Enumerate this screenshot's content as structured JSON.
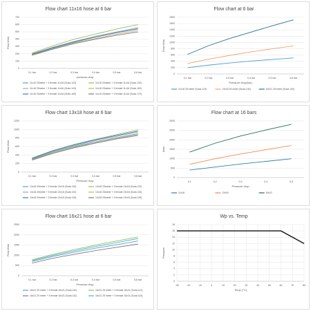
{
  "chart_data": [
    {
      "type": "line",
      "title": "Flow chart 11x16 hose at 6 bar",
      "y_label": "Flow l/min",
      "x_label": "pressure drop",
      "categories": [
        "0,1 bar",
        "0,2 bar",
        "0,3 bar",
        "0,4 bar",
        "0,5 bar",
        "0,6 bar"
      ],
      "ylim": [
        0,
        700
      ],
      "yticks": [
        0,
        100,
        200,
        300,
        400,
        500,
        600,
        700
      ],
      "grid": true,
      "series": [
        {
          "name": "11x16 25meter + 3 female 11x16 (Suda 123)",
          "color": "#5b9bd5",
          "values": [
            190,
            280,
            360,
            430,
            490,
            540
          ]
        },
        {
          "name": "11x16 25meter + 3 female 11x16 (Suda 130)",
          "color": "#8fbf5a",
          "values": [
            210,
            310,
            400,
            470,
            540,
            600
          ]
        },
        {
          "name": "11x16 25meter + 3 female 11x16 (Suda 140)",
          "color": "#a5a5a5",
          "values": [
            200,
            290,
            370,
            440,
            500,
            560
          ]
        },
        {
          "name": "11x16 25meter + 3 female 11x16 (Suda 150)",
          "color": "#c9b458",
          "values": [
            185,
            270,
            350,
            410,
            470,
            520
          ]
        },
        {
          "name": "11x16 25meter + 3 female 11x16 (Suda 160)",
          "color": "#4472c4",
          "values": [
            195,
            285,
            365,
            430,
            490,
            545
          ]
        },
        {
          "name": "11x16 25meter + 3 female 11x16 (Suda 170)",
          "color": "#7a7a7a",
          "values": [
            180,
            265,
            340,
            400,
            455,
            500
          ]
        }
      ]
    },
    {
      "type": "line",
      "title": "Flow chart at 6 bar",
      "y_label": "Flow l/min",
      "x_label": "Pressure drop(bar)",
      "categories": [
        "0,1 bar",
        "0,2 bar",
        "0,3 bar",
        "0,4 bar",
        "0,5 bar",
        "0,6 bar"
      ],
      "ylim": [
        0,
        1800
      ],
      "yticks": [
        0,
        200,
        400,
        600,
        800,
        1000,
        1200,
        1400,
        1600,
        1800
      ],
      "grid": true,
      "series": [
        {
          "name": "11x16 25 meter (Suda 123)",
          "color": "#4a9ed0",
          "values": [
            200,
            280,
            350,
            410,
            460,
            510
          ]
        },
        {
          "name": "13x18 25 meter (Suda 130)",
          "color": "#f0a46a",
          "values": [
            330,
            470,
            590,
            700,
            800,
            890
          ]
        },
        {
          "name": "16x21 25 meter (Suda 140)",
          "color": "#2e6e8e",
          "values": [
            620,
            900,
            1130,
            1330,
            1530,
            1720
          ]
        }
      ]
    },
    {
      "type": "line",
      "title": "Flow chart 13x18 hose at 6 bar",
      "y_label": "Flow l/min",
      "x_label": "Pressure drop",
      "categories": [
        "0,1 bar",
        "0,2 bar",
        "0,3 bar",
        "0,4 bar",
        "0,5 bar",
        "0,6 bar"
      ],
      "ylim": [
        0,
        1200
      ],
      "yticks": [
        0,
        200,
        400,
        600,
        800,
        1000,
        1200
      ],
      "grid": true,
      "series": [
        {
          "name": "13x18 25meter + 3 female 13x18 (Suda 130)",
          "color": "#5b9bd5",
          "values": [
            300,
            470,
            600,
            710,
            810,
            900
          ]
        },
        {
          "name": "13x18 25meter + 3 female 13x18 (Suda 131)",
          "color": "#8fbf5a",
          "values": [
            330,
            510,
            650,
            770,
            880,
            990
          ]
        },
        {
          "name": "13x18 25meter + 3 female 13x18 (Suda 132)",
          "color": "#a5a5a5",
          "values": [
            310,
            480,
            620,
            740,
            840,
            940
          ]
        },
        {
          "name": "13x18 25meter + 3 female 13x18 (Suda 133)",
          "color": "#c9b458",
          "values": [
            290,
            450,
            580,
            690,
            790,
            880
          ]
        },
        {
          "name": "13x18 25meter + 3 female 13x18 (Suda 134)",
          "color": "#4472c4",
          "values": [
            320,
            500,
            640,
            760,
            860,
            960
          ]
        },
        {
          "name": "13x18 25meter + 3 female 13x18 (Suda 135)",
          "color": "#7a7a7a",
          "values": [
            280,
            440,
            570,
            680,
            780,
            860
          ]
        }
      ]
    },
    {
      "type": "line",
      "title": "Flow chart at 16 bars",
      "y_label": "l/min",
      "x_label": "Pressure drop",
      "categories": [
        "0,1",
        "0,2",
        "0,3",
        "0,4",
        "0,5"
      ],
      "ylim": [
        0,
        3000
      ],
      "yticks": [
        0,
        500,
        1000,
        1500,
        2000,
        2500,
        3000
      ],
      "grid": true,
      "series": [
        {
          "name": "11x16",
          "color": "#2e7fa8",
          "values": [
            400,
            560,
            720,
            860,
            1000
          ]
        },
        {
          "name": "13x18",
          "color": "#f08a4b",
          "values": [
            700,
            1000,
            1250,
            1480,
            1700
          ]
        },
        {
          "name": "16x21",
          "color": "#1f6e5a",
          "values": [
            1350,
            1820,
            2200,
            2520,
            2820
          ]
        }
      ]
    },
    {
      "type": "line",
      "title": "Flow chart 16x21 hose at 6 bar",
      "y_label": "Flow l/min",
      "x_label": "Pressure drop",
      "categories": [
        "0,1 bar",
        "0,2 bar",
        "0,3 bar",
        "0,4 bar",
        "0,5 bar",
        "0,6 bar"
      ],
      "ylim": [
        0,
        2500
      ],
      "yticks": [
        0,
        500,
        1000,
        1500,
        2000,
        2500
      ],
      "grid": true,
      "series": [
        {
          "name": "16x21 25 meter + 3 female 16x21 (Suda 140)",
          "color": "#5b9bd5",
          "values": [
            700,
            950,
            1150,
            1350,
            1520,
            1700
          ]
        },
        {
          "name": "16x21 25 meter + 3 female 16x21 (Suda 141)",
          "color": "#8fbf5a",
          "values": [
            780,
            1050,
            1280,
            1500,
            1700,
            1900
          ]
        },
        {
          "name": "16x21 25 meter + 3 female 16x21 (Suda 142)",
          "color": "#7a7a7a",
          "values": [
            620,
            860,
            1050,
            1230,
            1390,
            1550
          ]
        },
        {
          "name": "16x21 25 meter + 3 female 16x21 (Suda 143)",
          "color": "#4ab3c9",
          "values": [
            740,
            1000,
            1220,
            1430,
            1620,
            1820
          ]
        }
      ]
    },
    {
      "type": "line",
      "title": "Wp vs. Temp",
      "y_label": "Pressure",
      "x_label": "Temp (°C)",
      "x": [
        -30,
        60,
        80
      ],
      "xlim": [
        -30,
        80
      ],
      "xticks": [
        -30,
        -20,
        -10,
        0,
        10,
        20,
        30,
        40,
        50,
        60,
        70,
        80
      ],
      "ylim": [
        0,
        18
      ],
      "yticks": [
        0,
        2,
        4,
        6,
        8,
        10,
        12,
        14,
        16,
        18
      ],
      "grid": true,
      "series": [
        {
          "name": "Wp",
          "color": "#111111",
          "values": [
            16,
            16,
            12
          ]
        }
      ]
    }
  ]
}
